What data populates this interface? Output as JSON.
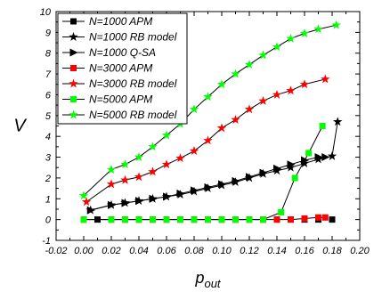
{
  "chart_data": {
    "type": "line",
    "xlabel": "p",
    "xlabel_sub": "out",
    "ylabel": "V",
    "xlim": [
      -0.02,
      0.2
    ],
    "ylim": [
      -1,
      10
    ],
    "x_ticks": [
      "-0.02",
      "0.00",
      "0.02",
      "0.04",
      "0.06",
      "0.08",
      "0.10",
      "0.12",
      "0.14",
      "0.16",
      "0.18",
      "0.20"
    ],
    "y_ticks": [
      "-1",
      "0",
      "1",
      "2",
      "3",
      "4",
      "5",
      "6",
      "7",
      "8",
      "9",
      "10"
    ],
    "legend_position": "top-left",
    "series": [
      {
        "name": "N=1000 APM",
        "color": "#000000",
        "marker": "square",
        "line": false,
        "points": [
          [
            0,
            0
          ],
          [
            0.01,
            0
          ],
          [
            0.02,
            0
          ],
          [
            0.03,
            0
          ],
          [
            0.04,
            0
          ],
          [
            0.05,
            0
          ],
          [
            0.06,
            0
          ],
          [
            0.07,
            0
          ],
          [
            0.08,
            0
          ],
          [
            0.09,
            0
          ],
          [
            0.1,
            0
          ],
          [
            0.11,
            0
          ],
          [
            0.12,
            0
          ],
          [
            0.13,
            0
          ],
          [
            0.14,
            0
          ],
          [
            0.15,
            0
          ],
          [
            0.16,
            0
          ],
          [
            0.17,
            0
          ],
          [
            0.18,
            0
          ]
        ]
      },
      {
        "name": "N=1000 RB model",
        "color": "#000000",
        "marker": "star",
        "line": true,
        "points": [
          [
            0.005,
            0.45
          ],
          [
            0.02,
            0.7
          ],
          [
            0.03,
            0.8
          ],
          [
            0.04,
            0.9
          ],
          [
            0.05,
            1.0
          ],
          [
            0.06,
            1.1
          ],
          [
            0.07,
            1.2
          ],
          [
            0.08,
            1.35
          ],
          [
            0.09,
            1.5
          ],
          [
            0.1,
            1.65
          ],
          [
            0.11,
            1.8
          ],
          [
            0.12,
            2.0
          ],
          [
            0.13,
            2.2
          ],
          [
            0.14,
            2.35
          ],
          [
            0.15,
            2.5
          ],
          [
            0.16,
            2.7
          ],
          [
            0.17,
            2.9
          ],
          [
            0.18,
            3.05
          ],
          [
            0.184,
            4.7
          ]
        ]
      },
      {
        "name": "N=1000 Q-SA",
        "color": "#000000",
        "marker": "triangle-right",
        "line": true,
        "points": [
          [
            0.005,
            0.45
          ],
          [
            0.02,
            0.7
          ],
          [
            0.03,
            0.8
          ],
          [
            0.04,
            0.9
          ],
          [
            0.05,
            1.0
          ],
          [
            0.06,
            1.1
          ],
          [
            0.07,
            1.25
          ],
          [
            0.08,
            1.4
          ],
          [
            0.09,
            1.55
          ],
          [
            0.1,
            1.7
          ],
          [
            0.11,
            1.85
          ],
          [
            0.12,
            2.05
          ],
          [
            0.13,
            2.25
          ],
          [
            0.14,
            2.45
          ],
          [
            0.15,
            2.65
          ],
          [
            0.16,
            2.85
          ],
          [
            0.17,
            3.0
          ],
          [
            0.175,
            3.0
          ]
        ]
      },
      {
        "name": "N=3000 APM",
        "color": "#ff0000",
        "marker": "square",
        "line": true,
        "points": [
          [
            0,
            0
          ],
          [
            0.02,
            0
          ],
          [
            0.03,
            0
          ],
          [
            0.04,
            0
          ],
          [
            0.05,
            0
          ],
          [
            0.06,
            0
          ],
          [
            0.07,
            0
          ],
          [
            0.08,
            0
          ],
          [
            0.09,
            0
          ],
          [
            0.1,
            0
          ],
          [
            0.11,
            0
          ],
          [
            0.12,
            0
          ],
          [
            0.13,
            0
          ],
          [
            0.14,
            0
          ],
          [
            0.15,
            0
          ],
          [
            0.16,
            0.05
          ],
          [
            0.17,
            0.1
          ],
          [
            0.175,
            0.1
          ]
        ]
      },
      {
        "name": "N=3000 RB model",
        "color": "#ff0000",
        "marker": "star",
        "line": true,
        "points": [
          [
            0.002,
            0.85
          ],
          [
            0.02,
            1.7
          ],
          [
            0.03,
            1.9
          ],
          [
            0.04,
            2.05
          ],
          [
            0.05,
            2.3
          ],
          [
            0.06,
            2.65
          ],
          [
            0.07,
            2.95
          ],
          [
            0.08,
            3.3
          ],
          [
            0.09,
            3.8
          ],
          [
            0.1,
            4.4
          ],
          [
            0.11,
            4.8
          ],
          [
            0.12,
            5.3
          ],
          [
            0.13,
            5.7
          ],
          [
            0.14,
            6.0
          ],
          [
            0.15,
            6.2
          ],
          [
            0.16,
            6.5
          ],
          [
            0.175,
            6.75
          ]
        ]
      },
      {
        "name": "N=5000 APM",
        "color": "#00ff00",
        "marker": "square",
        "line": true,
        "points": [
          [
            0,
            0
          ],
          [
            0.02,
            0
          ],
          [
            0.03,
            0
          ],
          [
            0.04,
            0
          ],
          [
            0.05,
            0
          ],
          [
            0.06,
            0
          ],
          [
            0.07,
            0
          ],
          [
            0.08,
            0
          ],
          [
            0.09,
            0
          ],
          [
            0.1,
            0
          ],
          [
            0.11,
            0
          ],
          [
            0.12,
            0
          ],
          [
            0.13,
            0
          ],
          [
            0.143,
            0.35
          ],
          [
            0.153,
            2.0
          ],
          [
            0.163,
            3.2
          ],
          [
            0.173,
            4.5
          ]
        ]
      },
      {
        "name": "N=5000 RB model",
        "color": "#00ff00",
        "marker": "star",
        "line": true,
        "points": [
          [
            0,
            1.15
          ],
          [
            0.02,
            2.4
          ],
          [
            0.03,
            2.65
          ],
          [
            0.04,
            3.0
          ],
          [
            0.05,
            3.5
          ],
          [
            0.06,
            4.05
          ],
          [
            0.07,
            4.6
          ],
          [
            0.08,
            5.3
          ],
          [
            0.09,
            5.9
          ],
          [
            0.1,
            6.5
          ],
          [
            0.11,
            7.0
          ],
          [
            0.12,
            7.45
          ],
          [
            0.13,
            7.9
          ],
          [
            0.14,
            8.3
          ],
          [
            0.15,
            8.7
          ],
          [
            0.16,
            8.95
          ],
          [
            0.17,
            9.15
          ],
          [
            0.183,
            9.35
          ]
        ]
      }
    ]
  }
}
